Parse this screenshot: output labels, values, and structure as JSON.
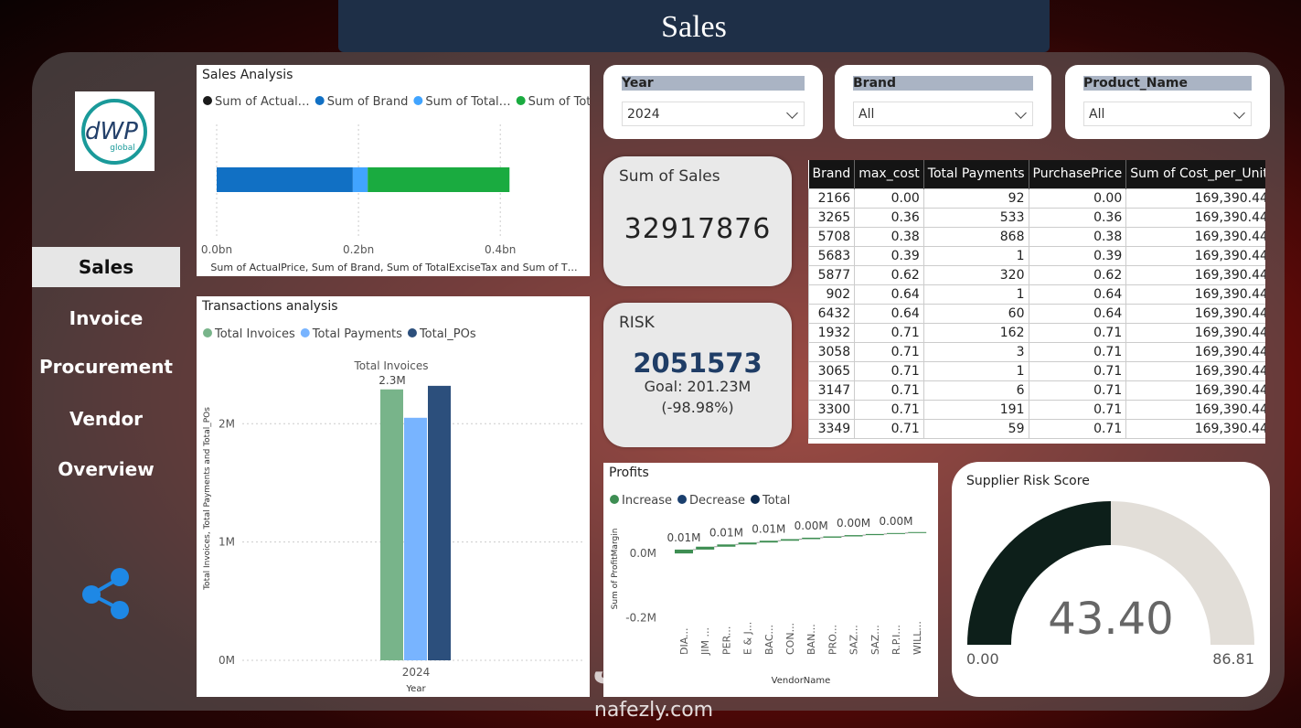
{
  "header": {
    "title": "Sales"
  },
  "logo": {
    "text": "dWP",
    "subtext": "global"
  },
  "nav": [
    "Sales",
    "Invoice",
    "Procurement",
    "Vendor",
    "Overview"
  ],
  "slicers": [
    {
      "label": "Year",
      "value": "2024"
    },
    {
      "label": "Brand",
      "value": "All"
    },
    {
      "label": "Product_Name",
      "value": "All"
    }
  ],
  "cards": {
    "sales": {
      "label": "Sum of Sales",
      "value": 32917876
    },
    "risk": {
      "label": "RISK",
      "value": 2051573,
      "goal_label": "Goal: 201.23M",
      "change_label": "(-98.98%)"
    }
  },
  "table": {
    "columns": [
      "Brand",
      "max_cost",
      "Total Payments",
      "PurchasePrice",
      "Sum of Cost_per_Unit"
    ],
    "rows": [
      [
        "2166",
        "0.00",
        "92",
        "0.00",
        "169,390.44"
      ],
      [
        "3265",
        "0.36",
        "533",
        "0.36",
        "169,390.44"
      ],
      [
        "5708",
        "0.38",
        "868",
        "0.38",
        "169,390.44"
      ],
      [
        "5683",
        "0.39",
        "1",
        "0.39",
        "169,390.44"
      ],
      [
        "5877",
        "0.62",
        "320",
        "0.62",
        "169,390.44"
      ],
      [
        "902",
        "0.64",
        "1",
        "0.64",
        "169,390.44"
      ],
      [
        "6432",
        "0.64",
        "60",
        "0.64",
        "169,390.44"
      ],
      [
        "1932",
        "0.71",
        "162",
        "0.71",
        "169,390.44"
      ],
      [
        "3058",
        "0.71",
        "3",
        "0.71",
        "169,390.44"
      ],
      [
        "3065",
        "0.71",
        "1",
        "0.71",
        "169,390.44"
      ],
      [
        "3147",
        "0.71",
        "6",
        "0.71",
        "169,390.44"
      ],
      [
        "3300",
        "0.71",
        "191",
        "0.71",
        "169,390.44"
      ],
      [
        "3349",
        "0.71",
        "59",
        "0.71",
        "169,390.44"
      ]
    ]
  },
  "watermark": {
    "arabic": "نفذلي",
    "latin": "nafezly.com"
  },
  "chart_data": [
    {
      "type": "hbar_stacked",
      "title": "Sales Analysis",
      "x_label": "Sum of ActualPrice, Sum of Brand, Sum of TotalExciseTax and Sum of T…",
      "categories": [
        null
      ],
      "series": [
        {
          "name": "Sum of Actual…",
          "color": "#1b1b1b",
          "values": [
            0
          ]
        },
        {
          "name": "Sum of Brand",
          "color": "#1170c4",
          "values": [
            0.192
          ]
        },
        {
          "name": "Sum of Total…",
          "color": "#41a4ff",
          "values": [
            0.021
          ]
        },
        {
          "name": "Sum of Tot…",
          "color": "#1aab40",
          "values": [
            0.2
          ]
        }
      ],
      "xlim": [
        0,
        0.49
      ],
      "xticks": [
        {
          "value": 0,
          "label": "0.0bn"
        },
        {
          "value": 0.2,
          "label": "0.2bn"
        },
        {
          "value": 0.4,
          "label": "0.4bn"
        }
      ],
      "grid": true
    },
    {
      "type": "grouped_bar",
      "title": "Transactions analysis",
      "x_label": "Year",
      "y_label": "Total Invoices, Total Payments and Total_POs",
      "annotation": "Total Invoices",
      "categories": [
        "2024"
      ],
      "series": [
        {
          "name": "Total Invoices",
          "color": "#78b48a",
          "values": [
            2.29
          ],
          "value_labels": [
            "2.3M"
          ]
        },
        {
          "name": "Total Payments",
          "color": "#78b4ff",
          "values": [
            2.05
          ]
        },
        {
          "name": "Total_POs",
          "color": "#2c4f7c",
          "values": [
            2.32
          ]
        }
      ],
      "ylim": [
        0,
        2.52
      ],
      "yticks": [
        {
          "value": 0,
          "label": "0M"
        },
        {
          "value": 1,
          "label": "1M"
        },
        {
          "value": 2,
          "label": "2M"
        }
      ],
      "grid": true
    },
    {
      "type": "waterfall",
      "title": "Profits",
      "x_label": "VendorName",
      "y_label": "Sum of ProfitMargin",
      "legend": [
        {
          "name": "Increase",
          "color": "#3e8e53"
        },
        {
          "name": "Decrease",
          "color": "#1a3f6e"
        },
        {
          "name": "Total",
          "color": "#0e2b4f"
        }
      ],
      "categories": [
        "DIA...",
        "JIM ...",
        "PER...",
        "E & J...",
        "BAC...",
        "CON...",
        "BAN...",
        "PRO...",
        "SAZ...",
        "SAZ...",
        "R.P.I...",
        "WILL..."
      ],
      "values": [
        0.012,
        0.009,
        0.007,
        0.006,
        0.0055,
        0.005,
        0.0045,
        0.004,
        0.004,
        0.0035,
        0.003,
        0.003
      ],
      "value_labels": [
        "0.01M",
        null,
        "0.01M",
        null,
        "0.01M",
        null,
        "0.00M",
        null,
        "0.00M",
        null,
        "0.00M",
        null
      ],
      "ylim": [
        -0.27,
        0.1
      ],
      "yticks": [
        {
          "value": -0.2,
          "label": "-0.2M"
        },
        {
          "value": 0,
          "label": "0.0M"
        }
      ],
      "grid": true
    },
    {
      "type": "gauge",
      "title": "Supplier Risk Score",
      "value": 43.4,
      "value_label": "43.40",
      "min": 0,
      "min_label": "0.00",
      "max": 86.81,
      "color": "#0d1f1a",
      "track_color": "#e2ded8"
    }
  ]
}
